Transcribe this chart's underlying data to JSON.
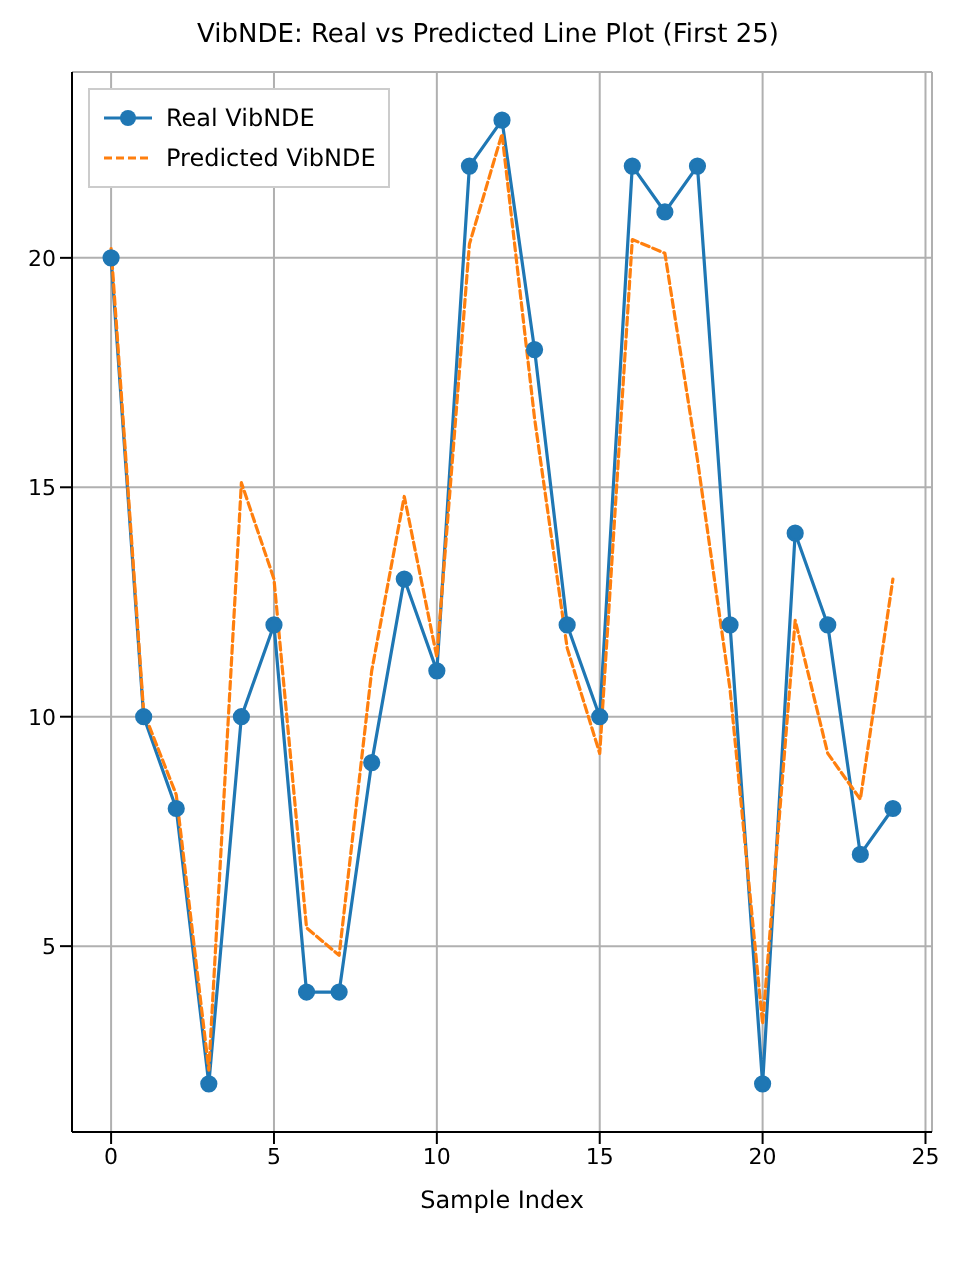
{
  "chart_data": {
    "type": "line",
    "title": "VibNDE: Real vs Predicted Line Plot (First 25)",
    "xlabel": "Sample Index",
    "x": [
      0,
      1,
      2,
      3,
      4,
      5,
      6,
      7,
      8,
      9,
      10,
      11,
      12,
      13,
      14,
      15,
      16,
      17,
      18,
      19,
      20,
      21,
      22,
      23,
      24
    ],
    "series": [
      {
        "name": "Real VibNDE",
        "color": "#1f77b4",
        "marker": "circle",
        "line_style": "solid",
        "values": [
          20,
          10,
          8,
          2,
          10,
          12,
          4,
          4,
          9,
          13,
          11,
          22,
          23,
          18,
          12,
          10,
          22,
          21,
          22,
          12,
          2,
          14,
          12,
          7,
          8
        ]
      },
      {
        "name": "Predicted VibNDE",
        "color": "#ff7f0e",
        "marker": "none",
        "line_style": "dashed",
        "values": [
          20.2,
          10.1,
          8.3,
          2.3,
          15.1,
          13,
          5.4,
          4.8,
          11,
          14.8,
          11.3,
          20.3,
          22.7,
          16.5,
          11.5,
          9.2,
          20.4,
          20.1,
          15.6,
          10.6,
          3.3,
          12.1,
          9.2,
          8.2,
          13
        ]
      }
    ],
    "xlim": [
      -1.2,
      25.2
    ],
    "xticks": [
      0,
      5,
      10,
      15,
      20,
      25
    ],
    "ylim": [
      0.95,
      24.05
    ],
    "yticks": [
      5,
      10,
      15,
      20
    ],
    "grid": true,
    "legend": "top left"
  }
}
